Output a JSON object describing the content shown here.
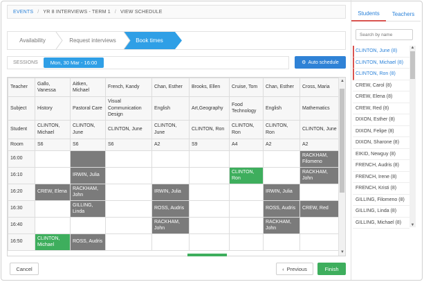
{
  "breadcrumb": [
    "EVENTS",
    "YR 8 INTERVIEWS - TERM 1",
    "VIEW SCHEDULE"
  ],
  "wizard": {
    "steps": [
      "Availability",
      "Request interviews",
      "Book times"
    ],
    "active_index": 2
  },
  "sessions": {
    "label": "SESSIONS",
    "selected": "Mon, 30 Mar - 16:00"
  },
  "auto_schedule_label": "Auto schedule",
  "grid": {
    "row_labels": {
      "teacher": "Teacher",
      "subject": "Subject",
      "student": "Student",
      "room": "Room"
    },
    "teachers": [
      {
        "teacher": "Gallo, Vanessa",
        "subject": "History",
        "student": "CLINTON, Michael",
        "room": "S6"
      },
      {
        "teacher": "Aitken, Michael",
        "subject": "Pastoral Care",
        "student": "CLINTON, June",
        "room": "S6"
      },
      {
        "teacher": "French, Kandy",
        "subject": "Visual Communication Design",
        "student": "CLINTON, June",
        "room": "S6"
      },
      {
        "teacher": "Chan, Esther",
        "subject": "English",
        "student": "CLINTON, June",
        "room": "A2"
      },
      {
        "teacher": "Brooks, Ellen",
        "subject": "Art,Geography",
        "student": "CLINTON, Ron",
        "room": "S9"
      },
      {
        "teacher": "Cruise, Tom",
        "subject": "Food Technology",
        "student": "CLINTON, Ron",
        "room": "A4"
      },
      {
        "teacher": "Chan, Esther",
        "subject": "English",
        "student": "CLINTON, Ron",
        "room": "A2"
      },
      {
        "teacher": "Cross, Maria",
        "subject": "Mathematics",
        "student": "CLINTON, June",
        "room": "A2"
      }
    ],
    "slots": [
      {
        "time": "16:00",
        "cells": [
          {
            "t": "",
            "s": "empty"
          },
          {
            "t": "",
            "s": "blocked"
          },
          {
            "t": "",
            "s": "empty"
          },
          {
            "t": "",
            "s": "empty"
          },
          {
            "t": "",
            "s": "empty"
          },
          {
            "t": "",
            "s": "empty"
          },
          {
            "t": "",
            "s": "empty"
          },
          {
            "t": "RACKHAM, Filomeno",
            "s": "booked"
          }
        ]
      },
      {
        "time": "16:10",
        "cells": [
          {
            "t": "",
            "s": "empty"
          },
          {
            "t": "IRWIN, Julia",
            "s": "booked"
          },
          {
            "t": "",
            "s": "empty"
          },
          {
            "t": "",
            "s": "empty"
          },
          {
            "t": "",
            "s": "empty"
          },
          {
            "t": "CLINTON, Ron",
            "s": "mine"
          },
          {
            "t": "",
            "s": "empty"
          },
          {
            "t": "RACKHAM, John",
            "s": "booked"
          }
        ]
      },
      {
        "time": "16:20",
        "cells": [
          {
            "t": "CREW, Elena",
            "s": "booked"
          },
          {
            "t": "RACKHAM, John",
            "s": "booked"
          },
          {
            "t": "",
            "s": "empty"
          },
          {
            "t": "IRWIN, Julia",
            "s": "booked"
          },
          {
            "t": "",
            "s": "empty"
          },
          {
            "t": "",
            "s": "empty"
          },
          {
            "t": "IRWIN, Julia",
            "s": "booked"
          },
          {
            "t": "",
            "s": "empty"
          }
        ]
      },
      {
        "time": "16:30",
        "cells": [
          {
            "t": "",
            "s": "empty"
          },
          {
            "t": "GILLING, Linda",
            "s": "booked"
          },
          {
            "t": "",
            "s": "empty"
          },
          {
            "t": "ROSS, Audris",
            "s": "booked"
          },
          {
            "t": "",
            "s": "empty"
          },
          {
            "t": "",
            "s": "empty"
          },
          {
            "t": "ROSS, Audris",
            "s": "booked"
          },
          {
            "t": "CREW, Red",
            "s": "booked"
          }
        ]
      },
      {
        "time": "16:40",
        "cells": [
          {
            "t": "",
            "s": "empty"
          },
          {
            "t": "",
            "s": "empty"
          },
          {
            "t": "",
            "s": "empty"
          },
          {
            "t": "RACKHAM, John",
            "s": "booked"
          },
          {
            "t": "",
            "s": "empty"
          },
          {
            "t": "",
            "s": "empty"
          },
          {
            "t": "RACKHAM, John",
            "s": "booked"
          },
          {
            "t": "",
            "s": "empty"
          }
        ]
      },
      {
        "time": "16:50",
        "cells": [
          {
            "t": "CLINTON, Michael",
            "s": "mine"
          },
          {
            "t": "ROSS, Audris",
            "s": "booked"
          },
          {
            "t": "",
            "s": "empty"
          },
          {
            "t": "",
            "s": "empty"
          },
          {
            "t": "",
            "s": "empty"
          },
          {
            "t": "",
            "s": "empty"
          },
          {
            "t": "",
            "s": "empty"
          },
          {
            "t": "",
            "s": "empty"
          }
        ]
      }
    ]
  },
  "footer": {
    "cancel": "Cancel",
    "previous": "Previous",
    "finish": "Finish"
  },
  "panel": {
    "tabs": [
      "Students",
      "Teachers"
    ],
    "search_placeholder": "Search by name",
    "students": [
      {
        "name": "CLINTON, June (8)",
        "selected": true
      },
      {
        "name": "CLINTON, Michael (8)",
        "selected": true
      },
      {
        "name": "CLINTON, Ron (8)",
        "selected": true
      },
      {
        "name": "CREW, Carol (8)",
        "selected": false
      },
      {
        "name": "CREW, Elena (8)",
        "selected": false
      },
      {
        "name": "CREW, Red (8)",
        "selected": false
      },
      {
        "name": "DIXON, Esther (8)",
        "selected": false
      },
      {
        "name": "DIXON, Felipe (8)",
        "selected": false
      },
      {
        "name": "DIXON, Sharone (8)",
        "selected": false
      },
      {
        "name": "EIKID, Newguy (8)",
        "selected": false
      },
      {
        "name": "FRENCH, Audris (8)",
        "selected": false
      },
      {
        "name": "FRENCH, Irene (8)",
        "selected": false
      },
      {
        "name": "FRENCH, Kristi (8)",
        "selected": false
      },
      {
        "name": "GILLING, Filomeno (8)",
        "selected": false
      },
      {
        "name": "GILLING, Linda (8)",
        "selected": false
      },
      {
        "name": "GILLING, Michael (8)",
        "selected": false
      }
    ]
  },
  "colors": {
    "accent": "#2f9fe6",
    "booked": "#7b7b7b",
    "own": "#3eae5d",
    "selected_marker": "#d9534f"
  }
}
